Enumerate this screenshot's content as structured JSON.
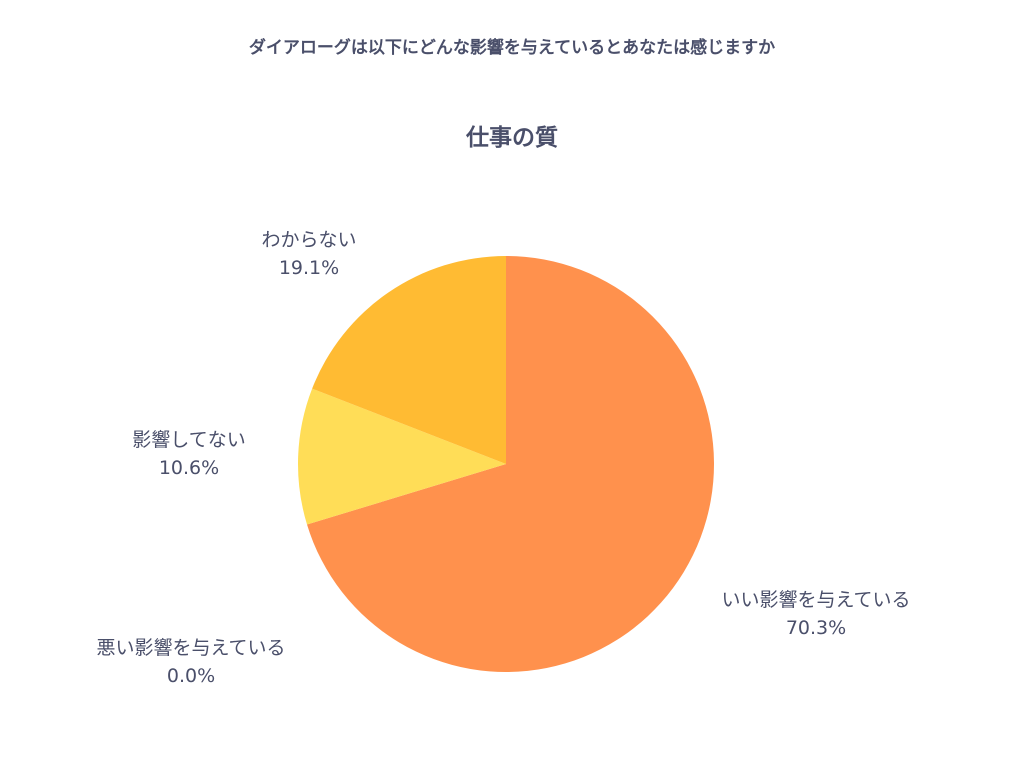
{
  "page": {
    "question": "ダイアローグは以下にどんな影響を与えているとあなたは感じますか"
  },
  "chart_data": {
    "type": "pie",
    "title": "仕事の質",
    "start_angle_deg": 0,
    "direction": "clockwise",
    "slices": [
      {
        "label": "いい影響を与えている",
        "value": 70.3,
        "display": "70.3%",
        "color": "#ff914d"
      },
      {
        "label": "悪い影響を与えている",
        "value": 0.0,
        "display": "0.0%",
        "color": "#ff914d"
      },
      {
        "label": "影響してない",
        "value": 10.6,
        "display": "10.6%",
        "color": "#ffdd57"
      },
      {
        "label": "わからない",
        "value": 19.1,
        "display": "19.1%",
        "color": "#ffbb33"
      }
    ],
    "legend": "none"
  }
}
